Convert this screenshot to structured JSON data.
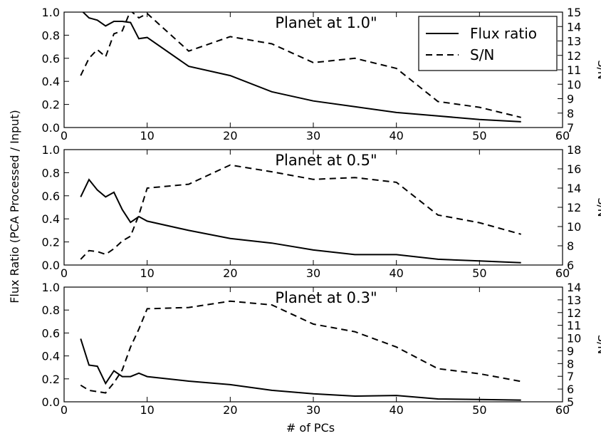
{
  "figure": {
    "shared_xlabel": "# of PCs",
    "shared_ylabel": "Flux Ratio (PCA Processed / Input)",
    "right_ylabel": "S/N"
  },
  "legend": {
    "location": "top-right of first panel",
    "entries": [
      {
        "label": "Flux ratio",
        "style": "solid"
      },
      {
        "label": "S/N",
        "style": "dashed"
      }
    ]
  },
  "colors": {
    "line": "#000000",
    "background": "#ffffff"
  },
  "chart_data": [
    {
      "type": "line",
      "title": "Planet at 1.0\"",
      "xlim": [
        0,
        60
      ],
      "xticks": [
        0,
        10,
        20,
        30,
        40,
        50,
        60
      ],
      "ylim_left": [
        0,
        1
      ],
      "yticks_left": [
        "0.0",
        "0.2",
        "0.4",
        "0.6",
        "0.8",
        "1.0"
      ],
      "ylim_right": [
        7,
        15
      ],
      "yticks_right": [
        "7",
        "8",
        "9",
        "10",
        "11",
        "12",
        "13",
        "14",
        "15"
      ],
      "series": [
        {
          "name": "Flux ratio",
          "axis": "left",
          "style": "solid",
          "x": [
            2,
            3,
            4,
            5,
            6,
            7,
            8,
            9,
            10,
            15,
            20,
            25,
            30,
            35,
            40,
            45,
            50,
            55
          ],
          "y": [
            1.02,
            0.95,
            0.93,
            0.88,
            0.92,
            0.92,
            0.91,
            0.77,
            0.78,
            0.53,
            0.45,
            0.31,
            0.23,
            0.18,
            0.13,
            0.1,
            0.07,
            0.05
          ]
        },
        {
          "name": "S/N",
          "axis": "right",
          "style": "dashed",
          "x": [
            2,
            3,
            4,
            5,
            6,
            7,
            8,
            9,
            10,
            15,
            20,
            25,
            30,
            35,
            40,
            45,
            50,
            55
          ],
          "y": [
            10.6,
            11.8,
            12.4,
            11.9,
            13.5,
            13.7,
            15.1,
            14.6,
            14.9,
            12.3,
            13.3,
            12.8,
            11.5,
            11.8,
            11.1,
            8.8,
            8.4,
            7.7
          ]
        }
      ]
    },
    {
      "type": "line",
      "title": "Planet at 0.5\"",
      "xlim": [
        0,
        60
      ],
      "xticks": [
        0,
        10,
        20,
        30,
        40,
        50,
        60
      ],
      "ylim_left": [
        0,
        1
      ],
      "yticks_left": [
        "0.0",
        "0.2",
        "0.4",
        "0.6",
        "0.8",
        "1.0"
      ],
      "ylim_right": [
        6,
        18
      ],
      "yticks_right": [
        "6",
        "8",
        "10",
        "12",
        "14",
        "16",
        "18"
      ],
      "series": [
        {
          "name": "Flux ratio",
          "axis": "left",
          "style": "solid",
          "x": [
            2,
            3,
            4,
            5,
            6,
            7,
            8,
            9,
            10,
            15,
            20,
            25,
            30,
            35,
            40,
            45,
            50,
            55
          ],
          "y": [
            0.59,
            0.74,
            0.65,
            0.59,
            0.63,
            0.48,
            0.37,
            0.42,
            0.38,
            0.3,
            0.23,
            0.19,
            0.13,
            0.09,
            0.09,
            0.05,
            0.035,
            0.02
          ]
        },
        {
          "name": "S/N",
          "axis": "right",
          "style": "dashed",
          "x": [
            2,
            3,
            4,
            5,
            6,
            7,
            8,
            9,
            10,
            15,
            20,
            25,
            30,
            35,
            40,
            45,
            50,
            55
          ],
          "y": [
            6.6,
            7.5,
            7.4,
            7.1,
            7.7,
            8.5,
            9.0,
            11.2,
            14.0,
            14.4,
            16.4,
            15.7,
            14.9,
            15.1,
            14.6,
            11.2,
            10.4,
            9.2
          ]
        }
      ]
    },
    {
      "type": "line",
      "title": "Planet at 0.3\"",
      "xlim": [
        0,
        60
      ],
      "xticks": [
        0,
        10,
        20,
        30,
        40,
        50,
        60
      ],
      "ylim_left": [
        0,
        1
      ],
      "yticks_left": [
        "0.0",
        "0.2",
        "0.4",
        "0.6",
        "0.8",
        "1.0"
      ],
      "ylim_right": [
        5,
        14
      ],
      "yticks_right": [
        "5",
        "6",
        "7",
        "8",
        "9",
        "10",
        "11",
        "12",
        "13",
        "14"
      ],
      "series": [
        {
          "name": "Flux ratio",
          "axis": "left",
          "style": "solid",
          "x": [
            2,
            3,
            4,
            5,
            6,
            7,
            8,
            9,
            10,
            15,
            20,
            25,
            30,
            35,
            40,
            45,
            50,
            55
          ],
          "y": [
            0.55,
            0.32,
            0.31,
            0.16,
            0.27,
            0.22,
            0.22,
            0.25,
            0.22,
            0.18,
            0.15,
            0.1,
            0.07,
            0.05,
            0.055,
            0.025,
            0.02,
            0.015
          ]
        },
        {
          "name": "S/N",
          "axis": "right",
          "style": "dashed",
          "x": [
            2,
            3,
            4,
            5,
            6,
            7,
            8,
            9,
            10,
            15,
            20,
            25,
            30,
            35,
            40,
            45,
            50,
            55
          ],
          "y": [
            6.3,
            5.9,
            5.8,
            5.7,
            6.5,
            7.5,
            9.3,
            10.7,
            12.3,
            12.4,
            12.9,
            12.6,
            11.1,
            10.5,
            9.3,
            7.6,
            7.2,
            6.6
          ]
        }
      ]
    }
  ]
}
